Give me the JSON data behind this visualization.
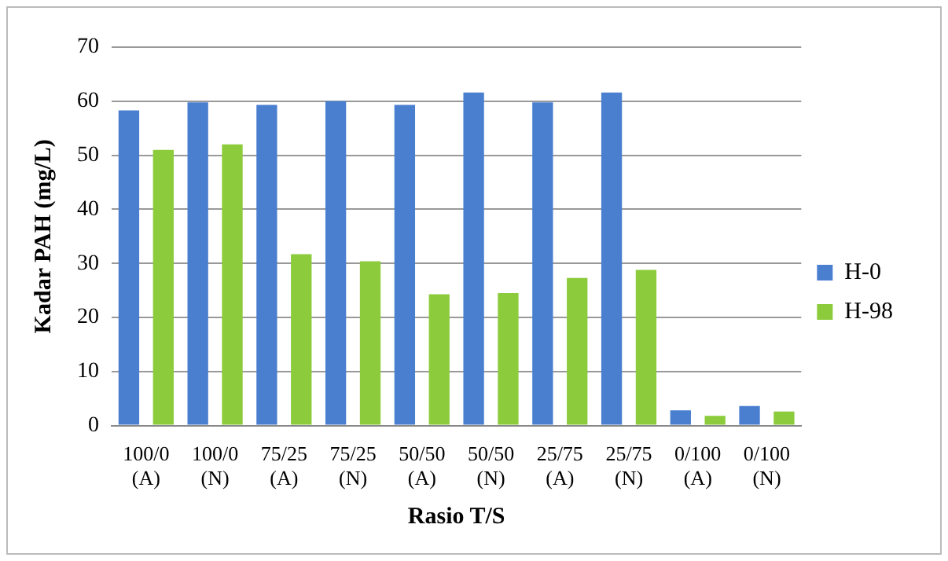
{
  "chart_data": {
    "type": "bar",
    "xlabel": "Rasio T/S",
    "ylabel": "Kadar PAH (mg/L)",
    "categories": [
      "100/0 (A)",
      "100/0 (N)",
      "75/25 (A)",
      "75/25 (N)",
      "50/50 (A)",
      "50/50 (N)",
      "25/75 (A)",
      "25/75 (N)",
      "0/100 (A)",
      "0/100 (N)"
    ],
    "series": [
      {
        "name": "H-0",
        "color": "#4a7fd0",
        "values": [
          58.3,
          59.8,
          59.3,
          60,
          59.3,
          61.6,
          59.8,
          61.6,
          2.8,
          3.6
        ]
      },
      {
        "name": "H-98",
        "color": "#8ccc3c",
        "values": [
          51,
          52,
          31.7,
          30.4,
          24.3,
          24.5,
          27.3,
          28.8,
          1.8,
          2.6
        ]
      }
    ],
    "ylim": [
      0,
      70
    ],
    "yticks": [
      0,
      10,
      20,
      30,
      40,
      50,
      60,
      70
    ],
    "grid": "y",
    "legend": "right"
  }
}
